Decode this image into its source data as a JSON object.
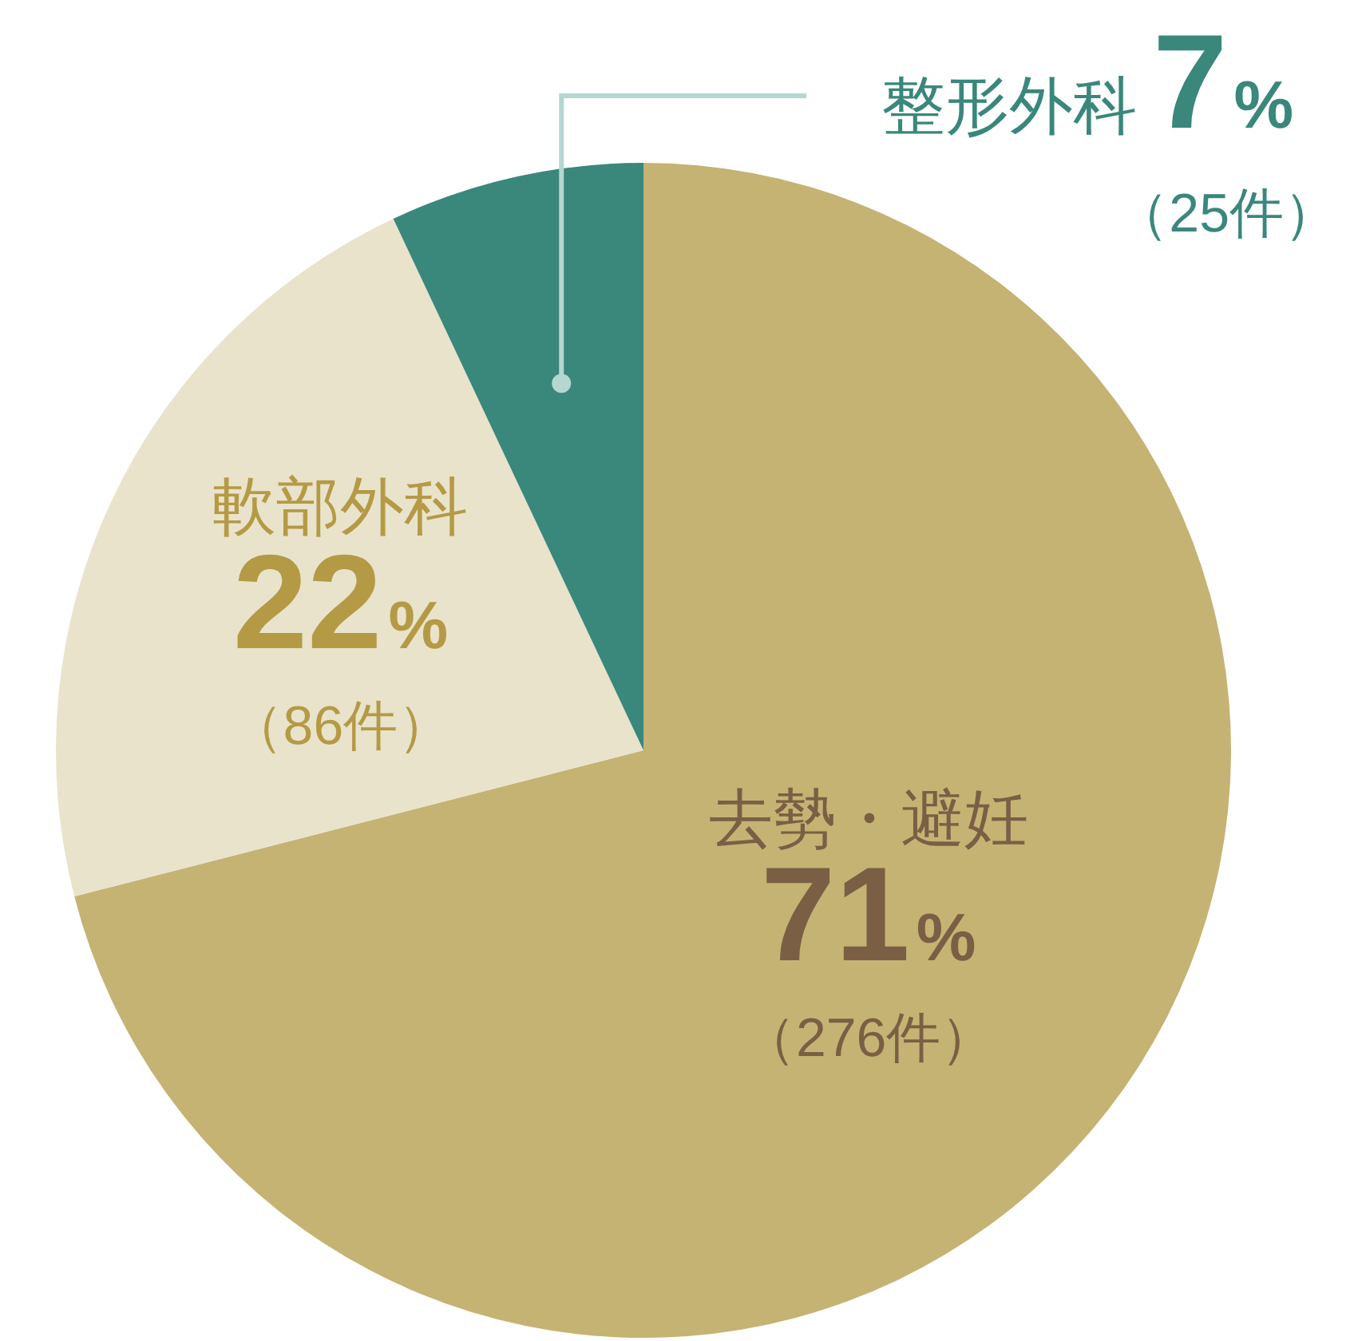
{
  "chart_data": {
    "type": "pie",
    "categories": [
      "去勢・避妊",
      "軟部外科",
      "整形外科"
    ],
    "values": [
      71,
      22,
      7
    ],
    "value_labels": [
      "71%",
      "22%",
      "7%"
    ],
    "colors": [
      "#c5b374",
      "#e9e3cc",
      "#3a877c"
    ],
    "annotations": [
      "（276件）",
      "（86件）",
      "（25件）"
    ]
  }
}
